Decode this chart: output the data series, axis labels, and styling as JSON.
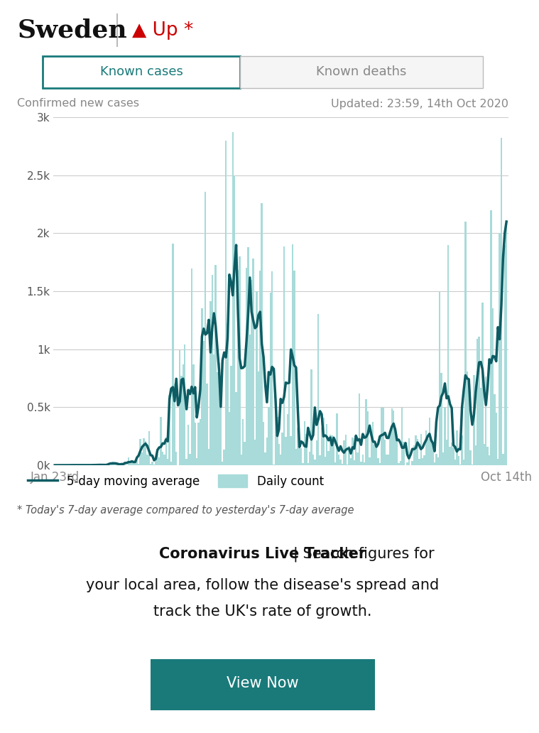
{
  "title": "Sweden",
  "trend_text": "▲ Up *",
  "trend_color": "#cc0000",
  "tab1_text": "Known cases",
  "tab2_text": "Known deaths",
  "tab1_color": "#1a7a7a",
  "tab2_color": "#888888",
  "subtitle_left": "Confirmed new cases",
  "subtitle_right": "Updated: 23:59, 14th Oct 2020",
  "subtitle_color": "#888888",
  "xlabel_left": "Jan 23rd",
  "xlabel_right": "Oct 14th",
  "ylabel_ticks": [
    "0k",
    "0.5k",
    "1k",
    "1.5k",
    "2k",
    "2.5k",
    "3k"
  ],
  "ylabel_values": [
    0,
    500,
    1000,
    1500,
    2000,
    2500,
    3000
  ],
  "ylim": [
    0,
    3000
  ],
  "bar_color": "#a8dbd9",
  "line_color": "#0d5c63",
  "legend_line_label": "5-day moving average",
  "legend_bar_label": "Daily count",
  "footnote": "* Today's 7-day average compared to yesterday's 7-day average",
  "footnote_color": "#555555",
  "promo_bold": "Coronavirus Live Tracker",
  "promo_sep": " | ",
  "promo_normal": "Search figures for\nyour local area, follow the disease's spread and\ntrack the UK's rate of growth.",
  "button_text": "View Now",
  "button_color": "#1a7a7a",
  "button_text_color": "#ffffff",
  "bg_color": "#ffffff",
  "grid_color": "#cccccc",
  "tab_border_color": "#1a7a7a",
  "tab_bg_active": "#ffffff",
  "tab_bg_inactive": "#f5f5f5",
  "separator_color": "#e0e0e0"
}
